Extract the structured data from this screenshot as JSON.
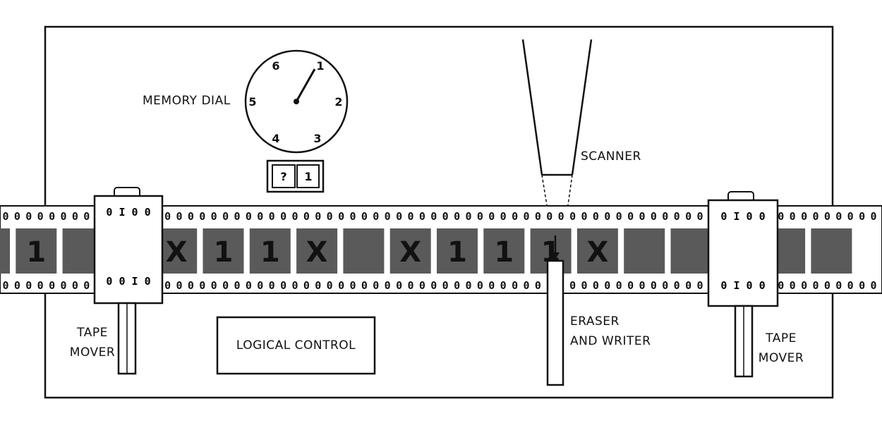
{
  "memory_dial": {
    "label": "MEMORY DIAL",
    "numbers": [
      "1",
      "2",
      "3",
      "4",
      "5",
      "6"
    ]
  },
  "register": {
    "left_symbol": "?",
    "right_symbol": "1"
  },
  "scanner_label": "SCANNER",
  "tape_mover_left": {
    "line1": "TAPE",
    "line2": "MOVER"
  },
  "tape_mover_right": {
    "line1": "TAPE",
    "line2": "MOVER"
  },
  "logical_control_label": "LOGICAL CONTROL",
  "eraser_writer": {
    "line1": "ERASER",
    "line2": "AND WRITER"
  },
  "tape": {
    "sprocket_glyph": "0",
    "squares": [
      "",
      "1",
      "",
      "",
      "X",
      "1",
      "1",
      "X",
      "",
      "X",
      "1",
      "1",
      "1",
      "X",
      "",
      "",
      "",
      "",
      ""
    ]
  },
  "colors": {
    "ink": "#111111",
    "tape_square": "#5a5a5a",
    "paper": "#ffffff"
  }
}
